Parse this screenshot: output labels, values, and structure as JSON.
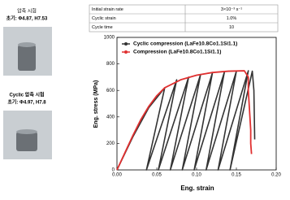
{
  "photos": [
    {
      "title": "압축 시험",
      "caption": "초기: Φ4.87, H7.53"
    },
    {
      "title": "Cyclic 압축 시험",
      "caption": "초기: Φ4.97, H7.8"
    }
  ],
  "table": {
    "rows": [
      [
        "Initial strain rate",
        "3×10⁻³ s⁻¹"
      ],
      [
        "Cyclic strain",
        "1.0%"
      ],
      [
        "Cycle time",
        "10"
      ]
    ]
  },
  "chart_data": {
    "type": "line",
    "xlabel": "Eng. strain",
    "ylabel": "Eng. stress (MPa)",
    "xlim": [
      0,
      0.2
    ],
    "ylim": [
      0,
      1000
    ],
    "xticks": [
      {
        "value": 0,
        "label": "0.00"
      },
      {
        "value": 0.05,
        "label": "0.05"
      },
      {
        "value": 0.1,
        "label": "0.10"
      },
      {
        "value": 0.15,
        "label": "0.15"
      },
      {
        "value": 0.2,
        "label": "0.20"
      }
    ],
    "yticks": [
      0,
      200,
      400,
      600,
      800,
      1000
    ],
    "legend": "upper left",
    "series": [
      {
        "name": "Cyclic compression (LaFe10.8Co1.1Si1.1)",
        "color": "#333333",
        "x": [
          0,
          0.02,
          0.04,
          0.06,
          0.037,
          0.075,
          0.052,
          0.09,
          0.067,
          0.105,
          0.082,
          0.12,
          0.097,
          0.135,
          0.112,
          0.15,
          0.127,
          0.165,
          0.142,
          0.17,
          0.172,
          0.173
        ],
        "values": [
          0,
          250,
          470,
          620,
          0,
          680,
          0,
          700,
          0,
          720,
          0,
          735,
          0,
          740,
          0,
          745,
          0,
          748,
          0,
          745,
          600,
          230
        ]
      },
      {
        "name": "Compression (LaFe10.8Co1.1Si1.1)",
        "color": "#e03030",
        "x": [
          0,
          0.01,
          0.02,
          0.03,
          0.04,
          0.05,
          0.06,
          0.08,
          0.1,
          0.12,
          0.14,
          0.16,
          0.165,
          0.165,
          0.166,
          0.167,
          0.168,
          0.168,
          0.169
        ],
        "values": [
          0,
          130,
          260,
          380,
          480,
          560,
          620,
          680,
          715,
          735,
          745,
          748,
          700,
          600,
          500,
          400,
          300,
          200,
          120
        ]
      }
    ]
  }
}
